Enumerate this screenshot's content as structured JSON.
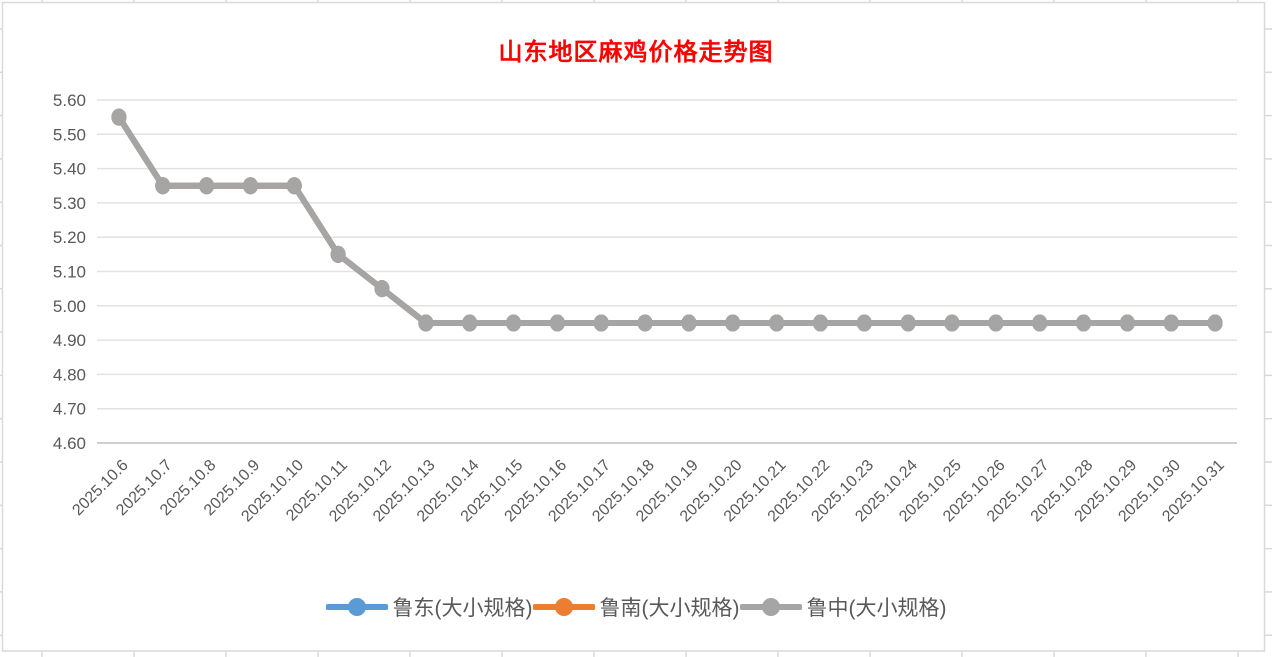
{
  "chart_data": {
    "type": "line",
    "title": "山东地区麻鸡价格走势图",
    "title_color": "#FF0000",
    "categories": [
      "2025.10.6",
      "2025.10.7",
      "2025.10.8",
      "2025.10.9",
      "2025.10.10",
      "2025.10.11",
      "2025.10.12",
      "2025.10.13",
      "2025.10.14",
      "2025.10.15",
      "2025.10.16",
      "2025.10.17",
      "2025.10.18",
      "2025.10.19",
      "2025.10.20",
      "2025.10.21",
      "2025.10.22",
      "2025.10.23",
      "2025.10.24",
      "2025.10.25",
      "2025.10.26",
      "2025.10.27",
      "2025.10.28",
      "2025.10.29",
      "2025.10.30",
      "2025.10.31"
    ],
    "series": [
      {
        "name": "鲁东(大小规格)",
        "color": "#5B9BD5",
        "values": [
          5.55,
          5.35,
          5.35,
          5.35,
          5.35,
          5.15,
          5.05,
          4.95,
          4.95,
          4.95,
          4.95,
          4.95,
          4.95,
          4.95,
          4.95,
          4.95,
          4.95,
          4.95,
          4.95,
          4.95,
          4.95,
          4.95,
          4.95,
          4.95,
          4.95,
          4.95
        ]
      },
      {
        "name": "鲁南(大小规格)",
        "color": "#ED7D31",
        "values": [
          5.55,
          5.35,
          5.35,
          5.35,
          5.35,
          5.15,
          5.05,
          4.95,
          4.95,
          4.95,
          4.95,
          4.95,
          4.95,
          4.95,
          4.95,
          4.95,
          4.95,
          4.95,
          4.95,
          4.95,
          4.95,
          4.95,
          4.95,
          4.95,
          4.95,
          4.95
        ]
      },
      {
        "name": "鲁中(大小规格)",
        "color": "#A5A5A5",
        "values": [
          5.55,
          5.35,
          5.35,
          5.35,
          5.35,
          5.15,
          5.05,
          4.95,
          4.95,
          4.95,
          4.95,
          4.95,
          4.95,
          4.95,
          4.95,
          4.95,
          4.95,
          4.95,
          4.95,
          4.95,
          4.95,
          4.95,
          4.95,
          4.95,
          4.95,
          4.95
        ]
      }
    ],
    "y_axis": {
      "min": 4.6,
      "max": 5.6,
      "step": 0.1,
      "tick_labels": [
        "5.60",
        "5.50",
        "5.40",
        "5.30",
        "5.20",
        "5.10",
        "5.00",
        "4.90",
        "4.80",
        "4.70",
        "4.60"
      ]
    },
    "xlabel": "",
    "ylabel": "",
    "grid": true,
    "legend_position": "bottom"
  },
  "colors": {
    "axis_label": "#595959",
    "gridline": "#E2E2E2",
    "axis_line": "#BFBFBF",
    "chart_border": "#D9D9D9",
    "sheet_gridline": "#D9D9D9"
  }
}
